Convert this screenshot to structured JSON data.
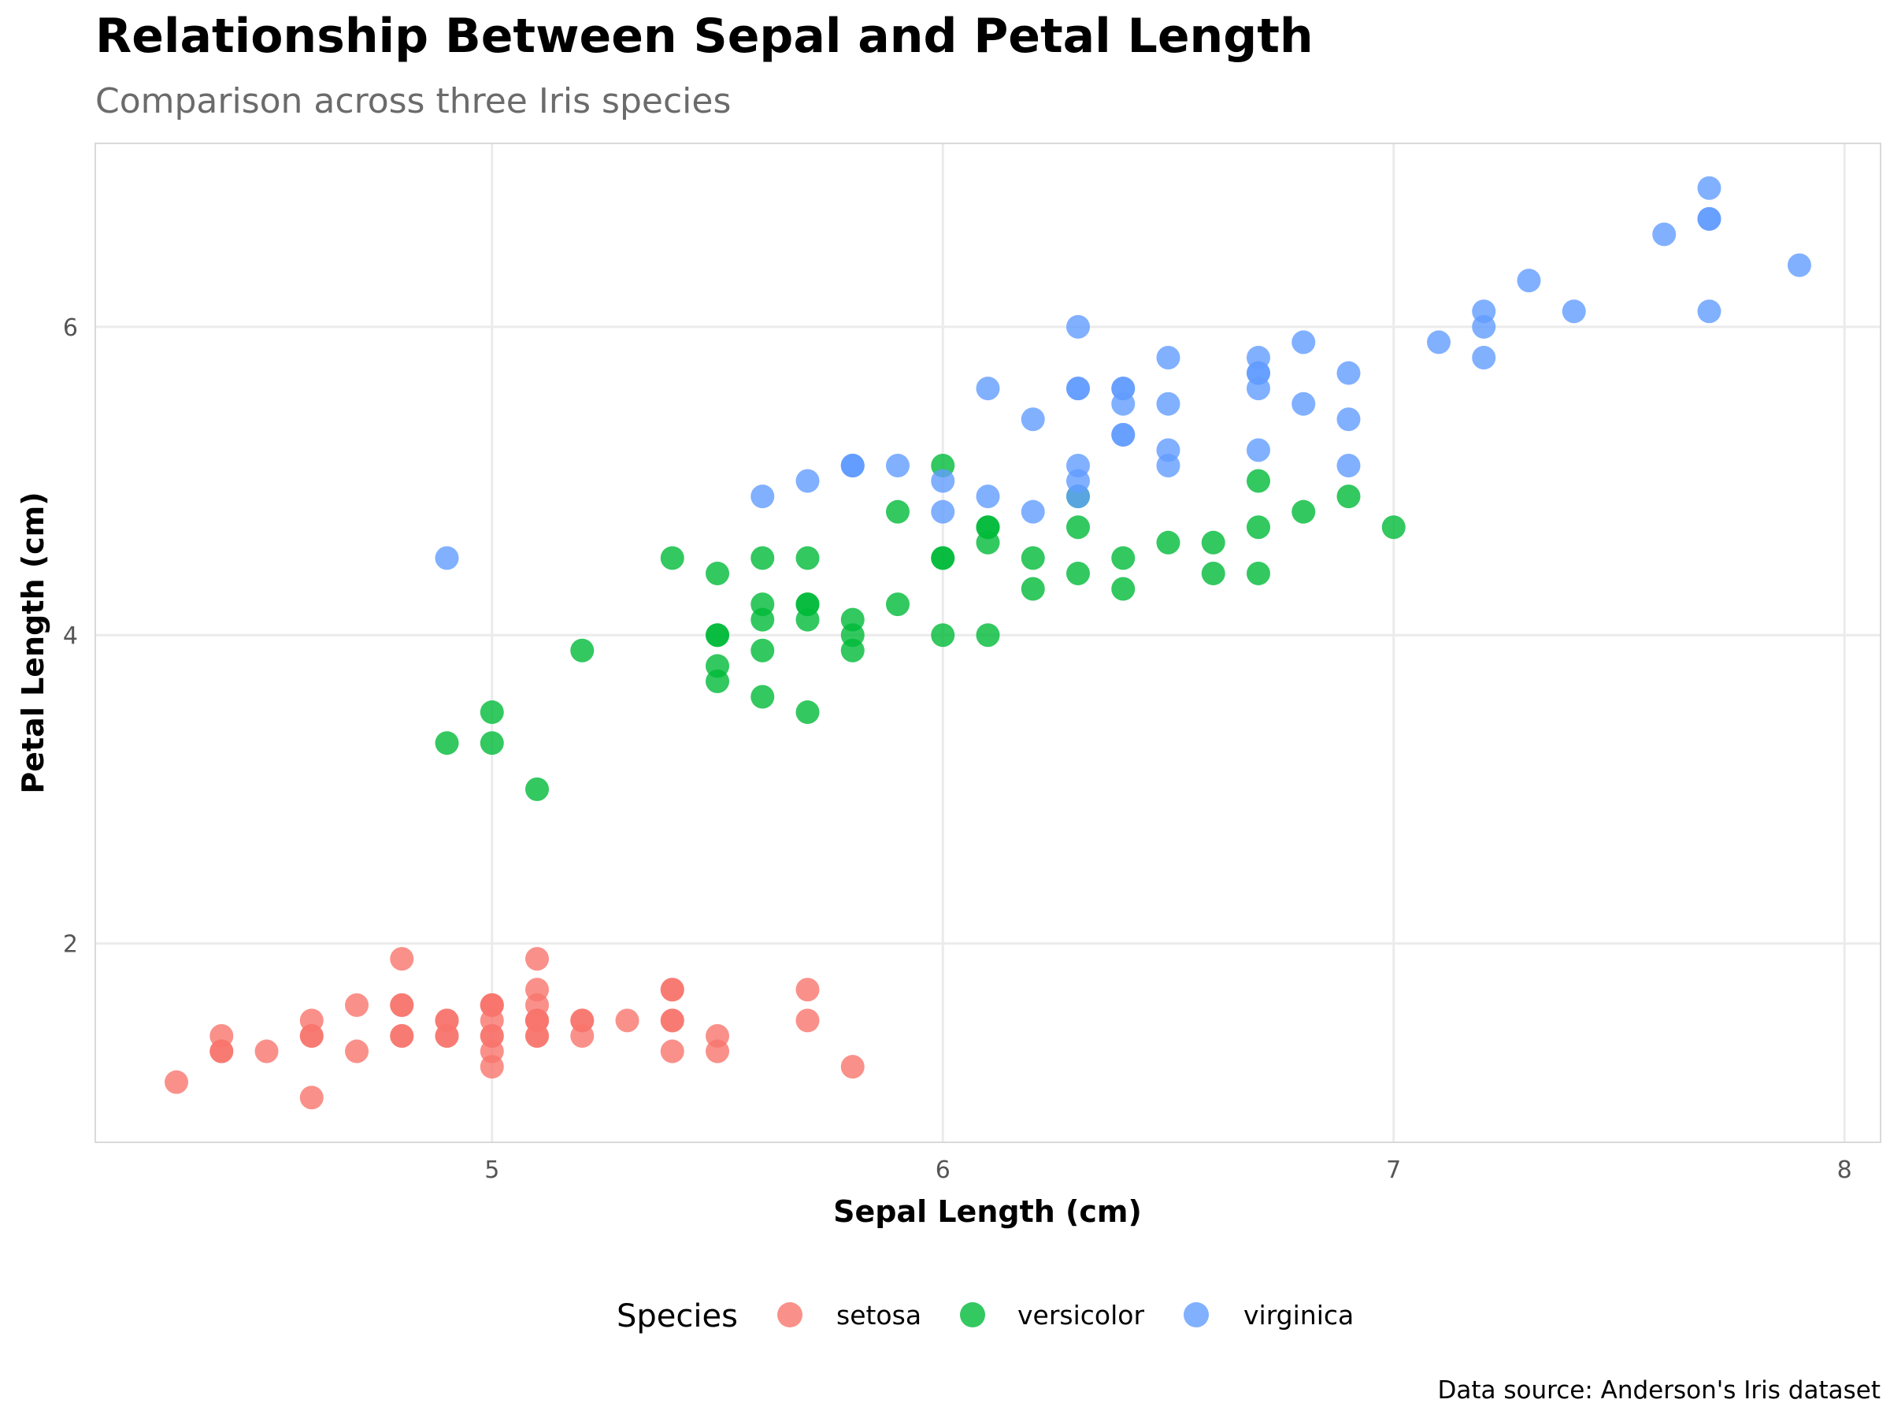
{
  "chart_data": {
    "type": "scatter",
    "title": "Relationship Between Sepal and Petal Length",
    "subtitle": "Comparison across three Iris species",
    "xlabel": "Sepal Length (cm)",
    "ylabel": "Petal Length (cm)",
    "caption": "Data source: Anderson's Iris dataset",
    "xlim": [
      4.12,
      8.08
    ],
    "ylim": [
      0.71,
      7.19
    ],
    "x_ticks": [
      5,
      6,
      7,
      8
    ],
    "x_tick_labels": [
      "5",
      "6",
      "7",
      "8"
    ],
    "y_ticks": [
      2,
      4,
      6
    ],
    "y_tick_labels": [
      "2",
      "4",
      "6"
    ],
    "grid": true,
    "legend": {
      "title": "Species",
      "position": "bottom"
    },
    "series": [
      {
        "name": "setosa",
        "color": "#F8766D",
        "points": [
          [
            5.1,
            1.4
          ],
          [
            4.9,
            1.4
          ],
          [
            4.7,
            1.3
          ],
          [
            4.6,
            1.5
          ],
          [
            5.0,
            1.4
          ],
          [
            5.4,
            1.7
          ],
          [
            4.6,
            1.4
          ],
          [
            5.0,
            1.5
          ],
          [
            4.4,
            1.4
          ],
          [
            4.9,
            1.5
          ],
          [
            5.4,
            1.5
          ],
          [
            4.8,
            1.6
          ],
          [
            4.8,
            1.4
          ],
          [
            4.3,
            1.1
          ],
          [
            5.8,
            1.2
          ],
          [
            5.7,
            1.5
          ],
          [
            5.4,
            1.3
          ],
          [
            5.1,
            1.4
          ],
          [
            5.7,
            1.7
          ],
          [
            5.1,
            1.5
          ],
          [
            5.4,
            1.7
          ],
          [
            5.1,
            1.5
          ],
          [
            4.6,
            1.0
          ],
          [
            5.1,
            1.7
          ],
          [
            4.8,
            1.9
          ],
          [
            5.0,
            1.6
          ],
          [
            5.0,
            1.6
          ],
          [
            5.2,
            1.5
          ],
          [
            5.2,
            1.4
          ],
          [
            4.7,
            1.6
          ],
          [
            4.8,
            1.6
          ],
          [
            5.4,
            1.5
          ],
          [
            5.2,
            1.5
          ],
          [
            5.5,
            1.4
          ],
          [
            4.9,
            1.5
          ],
          [
            5.0,
            1.2
          ],
          [
            5.5,
            1.3
          ],
          [
            4.9,
            1.4
          ],
          [
            4.4,
            1.3
          ],
          [
            5.1,
            1.5
          ],
          [
            5.0,
            1.3
          ],
          [
            4.5,
            1.3
          ],
          [
            4.4,
            1.3
          ],
          [
            5.0,
            1.6
          ],
          [
            5.1,
            1.9
          ],
          [
            4.8,
            1.4
          ],
          [
            5.1,
            1.6
          ],
          [
            4.6,
            1.4
          ],
          [
            5.3,
            1.5
          ],
          [
            5.0,
            1.4
          ]
        ]
      },
      {
        "name": "versicolor",
        "color": "#00BA38",
        "points": [
          [
            7.0,
            4.7
          ],
          [
            6.4,
            4.5
          ],
          [
            6.9,
            4.9
          ],
          [
            5.5,
            4.0
          ],
          [
            6.5,
            4.6
          ],
          [
            5.7,
            4.5
          ],
          [
            6.3,
            4.7
          ],
          [
            4.9,
            3.3
          ],
          [
            6.6,
            4.6
          ],
          [
            5.2,
            3.9
          ],
          [
            5.0,
            3.5
          ],
          [
            5.9,
            4.2
          ],
          [
            6.0,
            4.0
          ],
          [
            6.1,
            4.7
          ],
          [
            5.6,
            3.6
          ],
          [
            6.7,
            4.4
          ],
          [
            5.6,
            4.5
          ],
          [
            5.8,
            4.1
          ],
          [
            6.2,
            4.5
          ],
          [
            5.6,
            3.9
          ],
          [
            5.9,
            4.8
          ],
          [
            6.1,
            4.0
          ],
          [
            6.3,
            4.9
          ],
          [
            6.1,
            4.7
          ],
          [
            6.4,
            4.3
          ],
          [
            6.6,
            4.4
          ],
          [
            6.8,
            4.8
          ],
          [
            6.7,
            5.0
          ],
          [
            6.0,
            4.5
          ],
          [
            5.7,
            3.5
          ],
          [
            5.5,
            3.8
          ],
          [
            5.5,
            3.7
          ],
          [
            5.8,
            3.9
          ],
          [
            6.0,
            5.1
          ],
          [
            5.4,
            4.5
          ],
          [
            6.0,
            4.5
          ],
          [
            6.7,
            4.7
          ],
          [
            6.3,
            4.4
          ],
          [
            5.6,
            4.1
          ],
          [
            5.5,
            4.0
          ],
          [
            5.5,
            4.4
          ],
          [
            6.1,
            4.6
          ],
          [
            5.8,
            4.0
          ],
          [
            5.0,
            3.3
          ],
          [
            5.6,
            4.2
          ],
          [
            5.7,
            4.2
          ],
          [
            5.7,
            4.2
          ],
          [
            6.2,
            4.3
          ],
          [
            5.1,
            3.0
          ],
          [
            5.7,
            4.1
          ]
        ]
      },
      {
        "name": "virginica",
        "color": "#619CFF",
        "points": [
          [
            6.3,
            6.0
          ],
          [
            5.8,
            5.1
          ],
          [
            7.1,
            5.9
          ],
          [
            6.3,
            5.6
          ],
          [
            6.5,
            5.8
          ],
          [
            7.6,
            6.6
          ],
          [
            4.9,
            4.5
          ],
          [
            7.3,
            6.3
          ],
          [
            6.7,
            5.8
          ],
          [
            7.2,
            6.1
          ],
          [
            6.5,
            5.1
          ],
          [
            6.4,
            5.3
          ],
          [
            6.8,
            5.5
          ],
          [
            5.7,
            5.0
          ],
          [
            5.8,
            5.1
          ],
          [
            6.4,
            5.3
          ],
          [
            6.5,
            5.5
          ],
          [
            7.7,
            6.7
          ],
          [
            7.7,
            6.9
          ],
          [
            6.0,
            5.0
          ],
          [
            6.9,
            5.7
          ],
          [
            5.6,
            4.9
          ],
          [
            7.7,
            6.7
          ],
          [
            6.3,
            4.9
          ],
          [
            6.7,
            5.7
          ],
          [
            7.2,
            6.0
          ],
          [
            6.2,
            4.8
          ],
          [
            6.1,
            4.9
          ],
          [
            6.4,
            5.6
          ],
          [
            7.2,
            5.8
          ],
          [
            7.4,
            6.1
          ],
          [
            7.9,
            6.4
          ],
          [
            6.4,
            5.6
          ],
          [
            6.3,
            5.1
          ],
          [
            6.1,
            5.6
          ],
          [
            7.7,
            6.1
          ],
          [
            6.3,
            5.6
          ],
          [
            6.4,
            5.5
          ],
          [
            6.0,
            4.8
          ],
          [
            6.9,
            5.4
          ],
          [
            6.7,
            5.6
          ],
          [
            6.9,
            5.1
          ],
          [
            5.8,
            5.1
          ],
          [
            6.8,
            5.9
          ],
          [
            6.7,
            5.7
          ],
          [
            6.7,
            5.2
          ],
          [
            6.3,
            5.0
          ],
          [
            6.5,
            5.2
          ],
          [
            6.2,
            5.4
          ],
          [
            5.9,
            5.1
          ]
        ]
      }
    ]
  }
}
